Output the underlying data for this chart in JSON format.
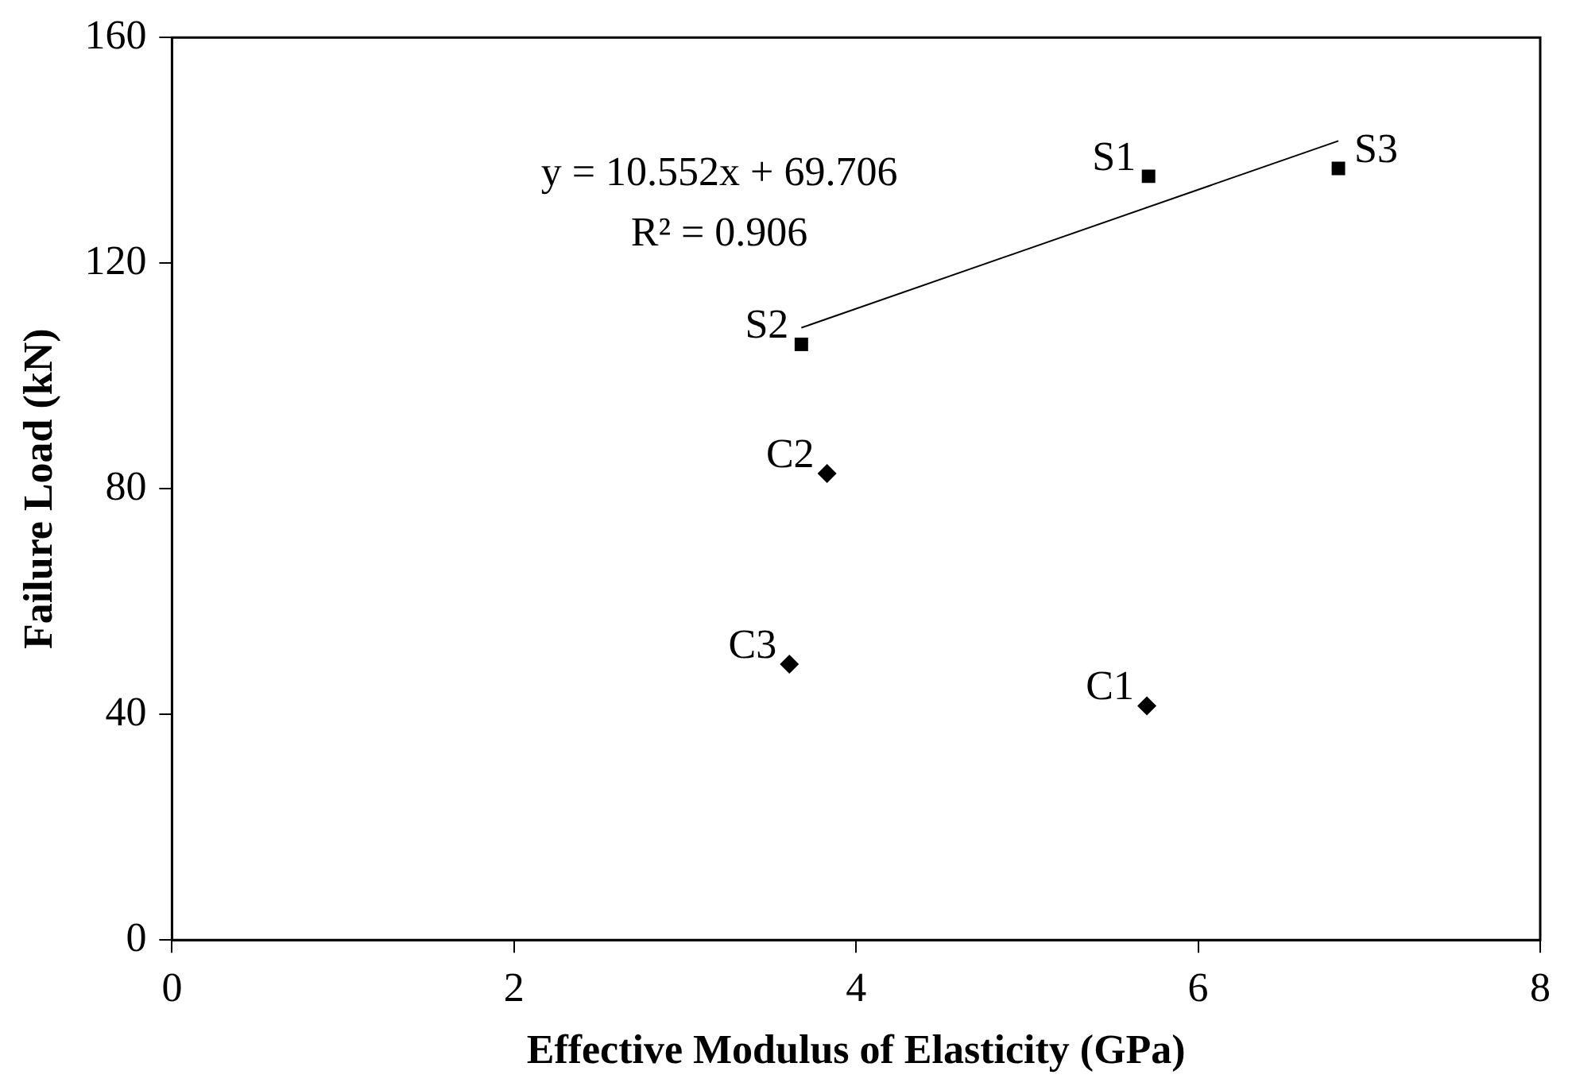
{
  "chart_data": {
    "type": "scatter",
    "xlabel": "Effective Modulus of Elasticity (GPa)",
    "ylabel": "Failure Load (kN)",
    "xlim": [
      0,
      8
    ],
    "xticks": [
      0,
      2,
      4,
      6,
      8
    ],
    "ylim": [
      0,
      160
    ],
    "yticks": [
      0,
      40,
      80,
      120,
      160
    ],
    "grid": false,
    "legend": false,
    "series": [
      {
        "color": "#000000",
        "marker": "square",
        "x": [
          5.71,
          3.68,
          6.82
        ],
        "values": [
          135.4,
          105.6,
          136.8
        ]
      },
      {
        "color": "#000000",
        "marker": "diamond",
        "x": [
          5.7,
          3.83,
          3.61
        ],
        "values": [
          41.5,
          82.7,
          48.9
        ]
      },
      {
        "type": "line",
        "color": "#000000",
        "marker": "none",
        "x": [
          3.68,
          6.82
        ],
        "values": [
          108.54,
          141.67
        ]
      }
    ],
    "annotations": [
      "y = 10.552x + 69.706",
      "R² = 0.906",
      {
        "text": "S1",
        "x": 5.71,
        "y": 135.4
      },
      {
        "text": "S2",
        "x": 3.68,
        "y": 105.6
      },
      {
        "text": "S3",
        "x": 6.82,
        "y": 136.8
      },
      {
        "text": "C1",
        "x": 5.7,
        "y": 41.5
      },
      {
        "text": "C2",
        "x": 3.83,
        "y": 82.7
      },
      {
        "text": "C3",
        "x": 3.61,
        "y": 48.9
      }
    ]
  }
}
